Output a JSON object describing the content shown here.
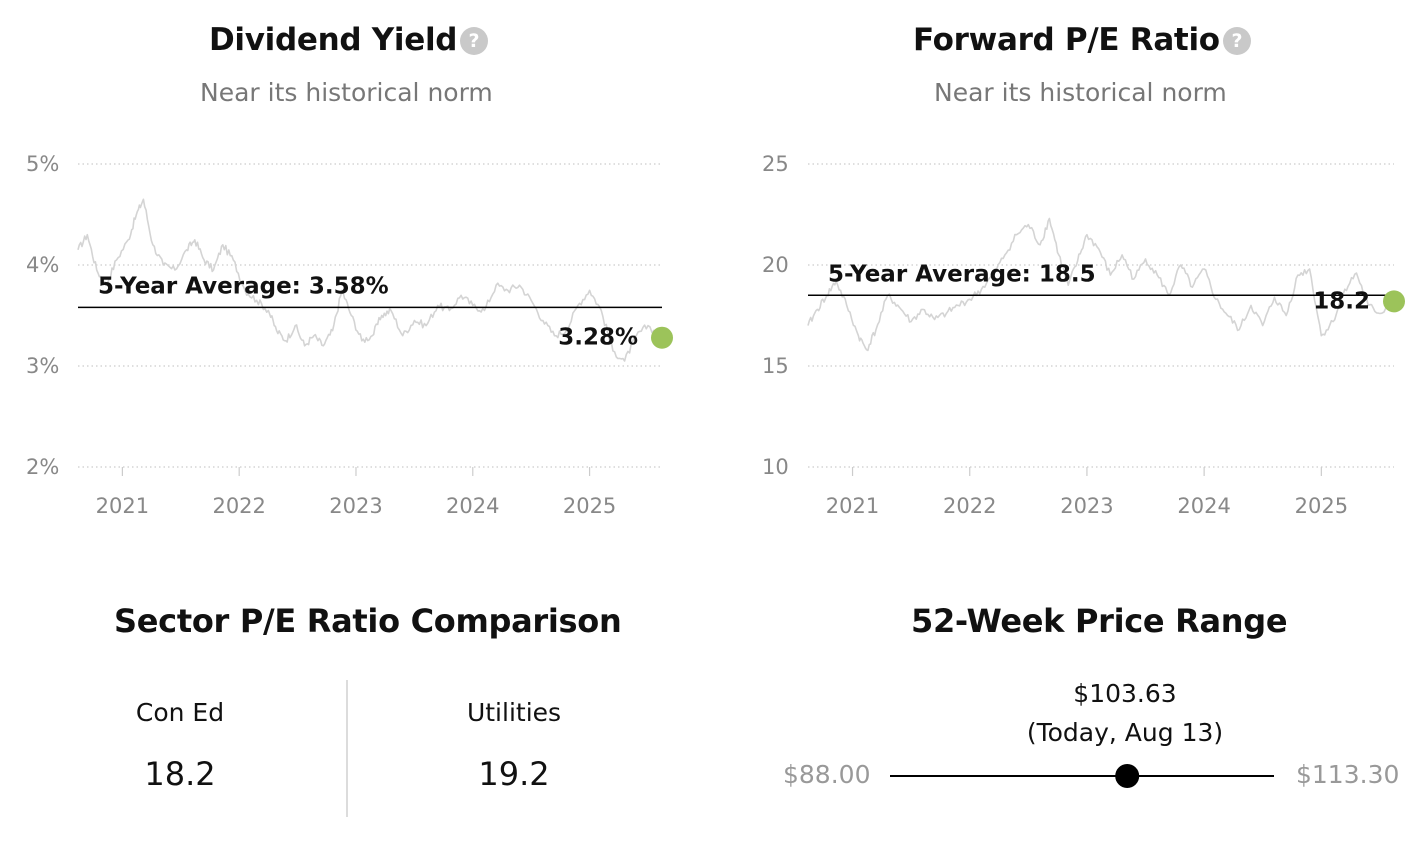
{
  "dividend": {
    "title": "Dividend Yield",
    "subtitle": "Near its historical norm",
    "help_icon": "question-circle-icon",
    "avg_label": "5-Year Average: 3.58%",
    "current_label": "3.28%"
  },
  "pe": {
    "title": "Forward P/E Ratio",
    "subtitle": "Near its historical norm",
    "help_icon": "question-circle-icon",
    "avg_label": "5-Year Average: 18.5",
    "current_label": "18.2"
  },
  "sector": {
    "title": "Sector P/E Ratio Comparison",
    "items": [
      {
        "label": "Con Ed",
        "value": "18.2"
      },
      {
        "label": "Utilities",
        "value": "19.2"
      }
    ]
  },
  "price_range": {
    "title": "52-Week Price Range",
    "current_price": "$103.63",
    "current_note": "(Today, Aug 13)",
    "low_label": "$88.00",
    "high_label": "$113.30",
    "low": 88.0,
    "high": 113.3,
    "current": 103.63
  },
  "colors": {
    "line": "#d4d4d4",
    "marker": "#9cc35a",
    "avg_line": "#000000",
    "grid": "#cccccc"
  },
  "chart_data": [
    {
      "type": "line",
      "xlim": [
        2020.62,
        2025.62
      ],
      "xticks": [
        2021,
        2022,
        2023,
        2024,
        2025
      ],
      "xtick_labels": [
        "2021",
        "2022",
        "2023",
        "2024",
        "2025"
      ],
      "ylim": [
        2,
        5
      ],
      "yticks": [
        2,
        3,
        4,
        5
      ],
      "ytick_labels": [
        "2%",
        "3%",
        "4%",
        "5%"
      ],
      "grid": true,
      "average": 3.58,
      "current": {
        "x": 2025.62,
        "y": 3.28
      },
      "series": [
        {
          "x": [
            2020.62,
            2020.7,
            2020.78,
            2020.86,
            2020.95,
            2021.05,
            2021.12,
            2021.18,
            2021.26,
            2021.35,
            2021.45,
            2021.55,
            2021.62,
            2021.7,
            2021.78,
            2021.86,
            2021.95,
            2022.05,
            2022.15,
            2022.25,
            2022.32,
            2022.4,
            2022.48,
            2022.56,
            2022.64,
            2022.72,
            2022.8,
            2022.88,
            2022.96,
            2023.05,
            2023.14,
            2023.22,
            2023.3,
            2023.4,
            2023.5,
            2023.6,
            2023.7,
            2023.8,
            2023.9,
            2024.0,
            2024.1,
            2024.2,
            2024.3,
            2024.4,
            2024.5,
            2024.6,
            2024.7,
            2024.8,
            2024.9,
            2025.0,
            2025.1,
            2025.2,
            2025.3,
            2025.4,
            2025.5,
            2025.62
          ],
          "y": [
            4.15,
            4.3,
            3.95,
            3.8,
            4.05,
            4.25,
            4.5,
            4.65,
            4.2,
            4.0,
            3.95,
            4.15,
            4.25,
            4.05,
            3.95,
            4.2,
            4.05,
            3.75,
            3.65,
            3.55,
            3.35,
            3.25,
            3.4,
            3.2,
            3.3,
            3.2,
            3.35,
            3.75,
            3.5,
            3.25,
            3.3,
            3.5,
            3.55,
            3.3,
            3.45,
            3.4,
            3.6,
            3.55,
            3.7,
            3.6,
            3.55,
            3.8,
            3.75,
            3.8,
            3.65,
            3.45,
            3.3,
            3.35,
            3.6,
            3.75,
            3.55,
            3.15,
            3.05,
            3.3,
            3.4,
            3.28
          ]
        }
      ]
    },
    {
      "type": "line",
      "xlim": [
        2020.62,
        2025.62
      ],
      "xticks": [
        2021,
        2022,
        2023,
        2024,
        2025
      ],
      "xtick_labels": [
        "2021",
        "2022",
        "2023",
        "2024",
        "2025"
      ],
      "ylim": [
        10,
        25
      ],
      "yticks": [
        10,
        15,
        20,
        25
      ],
      "ytick_labels": [
        "10",
        "15",
        "20",
        "25"
      ],
      "grid": true,
      "average": 18.5,
      "current": {
        "x": 2025.62,
        "y": 18.2
      },
      "series": [
        {
          "x": [
            2020.62,
            2020.7,
            2020.78,
            2020.86,
            2020.95,
            2021.05,
            2021.12,
            2021.2,
            2021.3,
            2021.4,
            2021.5,
            2021.6,
            2021.7,
            2021.8,
            2021.9,
            2022.0,
            2022.1,
            2022.2,
            2022.3,
            2022.4,
            2022.5,
            2022.6,
            2022.68,
            2022.76,
            2022.84,
            2022.92,
            2023.0,
            2023.1,
            2023.2,
            2023.3,
            2023.4,
            2023.5,
            2023.6,
            2023.7,
            2023.8,
            2023.9,
            2024.0,
            2024.1,
            2024.2,
            2024.3,
            2024.4,
            2024.5,
            2024.6,
            2024.7,
            2024.8,
            2024.9,
            2025.0,
            2025.1,
            2025.2,
            2025.3,
            2025.4,
            2025.5,
            2025.62
          ],
          "y": [
            17.0,
            17.8,
            18.5,
            19.2,
            18.0,
            16.5,
            15.8,
            16.8,
            18.5,
            17.9,
            17.2,
            17.8,
            17.3,
            17.6,
            18.0,
            18.3,
            18.8,
            19.5,
            20.5,
            21.5,
            22.0,
            21.0,
            22.3,
            20.5,
            19.0,
            20.2,
            21.5,
            20.8,
            19.5,
            20.5,
            19.3,
            20.3,
            19.5,
            18.5,
            20.0,
            18.9,
            19.8,
            18.3,
            17.5,
            16.8,
            18.0,
            17.0,
            18.4,
            17.5,
            19.5,
            19.8,
            16.5,
            17.2,
            18.8,
            19.6,
            18.0,
            17.6,
            18.2
          ]
        }
      ]
    }
  ]
}
